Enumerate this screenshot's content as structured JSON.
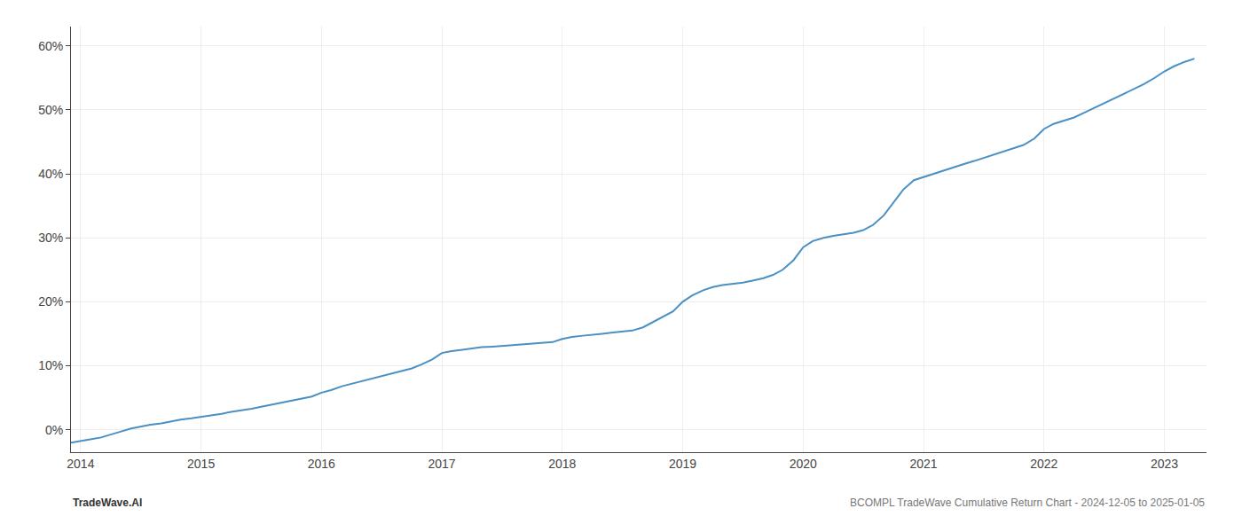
{
  "chart_data": {
    "type": "line",
    "x": [
      2013.92,
      2014.0,
      2014.08,
      2014.17,
      2014.25,
      2014.33,
      2014.42,
      2014.5,
      2014.58,
      2014.67,
      2014.75,
      2014.83,
      2014.92,
      2015.0,
      2015.08,
      2015.17,
      2015.25,
      2015.33,
      2015.42,
      2015.5,
      2015.58,
      2015.67,
      2015.75,
      2015.83,
      2015.92,
      2016.0,
      2016.08,
      2016.17,
      2016.25,
      2016.33,
      2016.42,
      2016.5,
      2016.58,
      2016.67,
      2016.75,
      2016.83,
      2016.92,
      2017.0,
      2017.08,
      2017.17,
      2017.25,
      2017.33,
      2017.42,
      2017.5,
      2017.58,
      2017.67,
      2017.75,
      2017.83,
      2017.92,
      2018.0,
      2018.08,
      2018.17,
      2018.25,
      2018.33,
      2018.42,
      2018.5,
      2018.58,
      2018.67,
      2018.75,
      2018.83,
      2018.92,
      2019.0,
      2019.08,
      2019.17,
      2019.25,
      2019.33,
      2019.42,
      2019.5,
      2019.58,
      2019.67,
      2019.75,
      2019.83,
      2019.92,
      2020.0,
      2020.08,
      2020.17,
      2020.25,
      2020.33,
      2020.42,
      2020.5,
      2020.58,
      2020.67,
      2020.75,
      2020.83,
      2020.92,
      2021.0,
      2021.08,
      2021.17,
      2021.25,
      2021.33,
      2021.42,
      2021.5,
      2021.58,
      2021.67,
      2021.75,
      2021.83,
      2021.92,
      2022.0,
      2022.08,
      2022.17,
      2022.25,
      2022.33,
      2022.42,
      2022.5,
      2022.58,
      2022.67,
      2022.75,
      2022.83,
      2022.92,
      2023.0,
      2023.08,
      2023.17,
      2023.25
    ],
    "values": [
      -2.0,
      -1.8,
      -1.5,
      -1.2,
      -0.8,
      -0.3,
      0.2,
      0.5,
      0.8,
      1.0,
      1.3,
      1.6,
      1.8,
      2.0,
      2.2,
      2.5,
      2.8,
      3.0,
      3.3,
      3.6,
      3.9,
      4.2,
      4.5,
      4.8,
      5.2,
      5.8,
      6.2,
      6.8,
      7.2,
      7.6,
      8.0,
      8.4,
      8.8,
      9.2,
      9.6,
      10.2,
      11.0,
      12.0,
      12.3,
      12.5,
      12.7,
      12.9,
      13.0,
      13.1,
      13.2,
      13.3,
      13.4,
      13.5,
      13.7,
      14.2,
      14.5,
      14.7,
      14.9,
      15.0,
      15.2,
      15.3,
      15.5,
      16.0,
      16.8,
      17.5,
      18.5,
      20.0,
      21.0,
      21.8,
      22.3,
      22.6,
      22.8,
      23.0,
      23.3,
      23.7,
      24.2,
      25.0,
      26.5,
      28.5,
      29.5,
      30.0,
      30.3,
      30.5,
      30.8,
      31.2,
      32.0,
      33.5,
      35.5,
      37.5,
      39.0,
      39.5,
      40.0,
      40.5,
      41.0,
      41.5,
      42.0,
      42.5,
      43.0,
      43.5,
      44.0,
      44.5,
      45.5,
      47.0,
      47.8,
      48.3,
      48.8,
      49.5,
      50.3,
      51.0,
      51.8,
      52.5,
      53.2,
      54.0,
      55.0,
      56.0,
      56.8,
      57.5,
      58.0
    ],
    "color": "#4a90c4",
    "xlim": [
      2013.92,
      2023.35
    ],
    "ylim": [
      -3.5,
      63
    ],
    "xticks": [
      2014,
      2015,
      2016,
      2017,
      2018,
      2019,
      2020,
      2021,
      2022,
      2023
    ],
    "yticks": [
      {
        "value": 0,
        "label": "0%"
      },
      {
        "value": 10,
        "label": "10%"
      },
      {
        "value": 20,
        "label": "20%"
      },
      {
        "value": 30,
        "label": "30%"
      },
      {
        "value": 40,
        "label": "40%"
      },
      {
        "value": 50,
        "label": "50%"
      },
      {
        "value": 60,
        "label": "60%"
      }
    ],
    "grid": true,
    "annotations": [
      "TradeWave.AI",
      "BCOMPL TradeWave Cumulative Return Chart - 2024-12-05 to 2025-01-05"
    ]
  }
}
